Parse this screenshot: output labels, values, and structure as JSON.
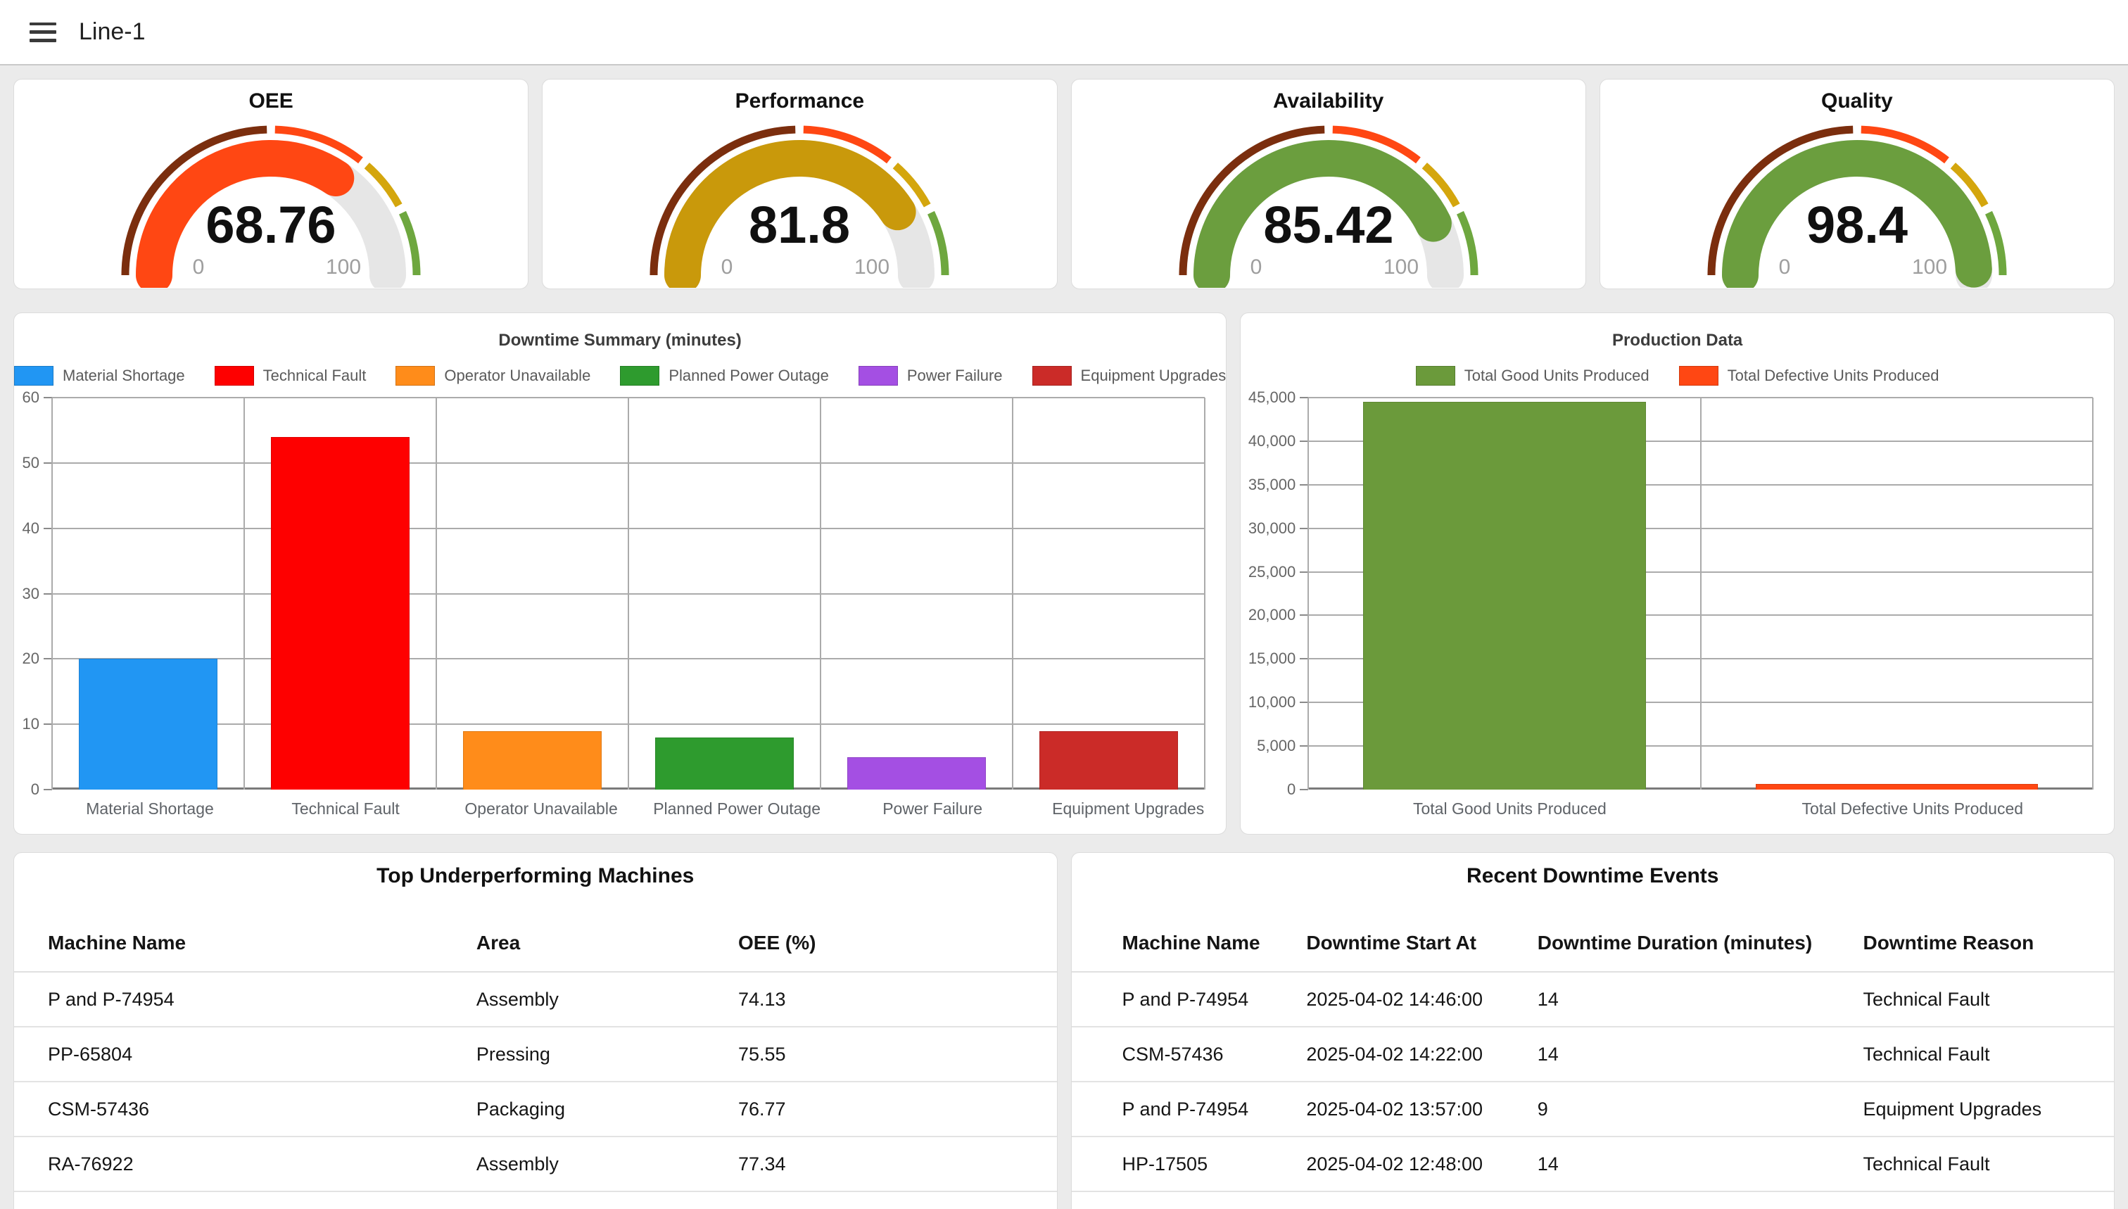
{
  "page_background": "#EBEBEB",
  "header": {
    "title": "Line-1"
  },
  "gauge_style": {
    "ring_segments": [
      {
        "from": 0,
        "to": 50,
        "color": "#7B2E0E"
      },
      {
        "from": 50,
        "to": 72,
        "color": "#FF4713"
      },
      {
        "from": 72,
        "to": 85,
        "color": "#D4A60D"
      },
      {
        "from": 85,
        "to": 100,
        "color": "#6EA73F"
      }
    ],
    "track_color": "#E6E6E6",
    "min_label": "0",
    "max_label": "100"
  },
  "chart_data": [
    {
      "type": "gauge",
      "title": "OEE",
      "value": 68.76,
      "min": 0,
      "max": 100,
      "fill_color": "#FF4713"
    },
    {
      "type": "gauge",
      "title": "Performance",
      "value": 81.8,
      "min": 0,
      "max": 100,
      "fill_color": "#C9990B"
    },
    {
      "type": "gauge",
      "title": "Availability",
      "value": 85.42,
      "min": 0,
      "max": 100,
      "fill_color": "#6B9E3E"
    },
    {
      "type": "gauge",
      "title": "Quality",
      "value": 98.4,
      "min": 0,
      "max": 100,
      "fill_color": "#6B9E3E"
    },
    {
      "type": "bar",
      "title": "Downtime Summary (minutes)",
      "categories": [
        "Material Shortage",
        "Technical Fault",
        "Operator Unavailable",
        "Planned Power Outage",
        "Power Failure",
        "Equipment Upgrades"
      ],
      "values": [
        20,
        54,
        9,
        8,
        5,
        9
      ],
      "colors": [
        "#2196F3",
        "#FE0000",
        "#FF8C1A",
        "#2E9B2E",
        "#A44FE3",
        "#CB2B28"
      ],
      "ylim": [
        0,
        60
      ],
      "ytick_step": 10,
      "grid": true,
      "legend_position": "top",
      "xlabel": "",
      "ylabel": ""
    },
    {
      "type": "bar",
      "title": "Production Data",
      "categories": [
        "Total Good Units Produced",
        "Total Defective Units Produced"
      ],
      "values": [
        44500,
        650
      ],
      "colors": [
        "#6B9A3B",
        "#FF4713"
      ],
      "ylim": [
        0,
        45000
      ],
      "ytick_step": 5000,
      "grid": true,
      "legend_position": "top",
      "xlabel": "",
      "ylabel": ""
    }
  ],
  "tables": {
    "underperforming": {
      "title": "Top Underperforming Machines",
      "columns": [
        "Machine Name",
        "Area",
        "OEE (%)"
      ],
      "rows": [
        [
          "P and P-74954",
          "Assembly",
          "74.13"
        ],
        [
          "PP-65804",
          "Pressing",
          "75.55"
        ],
        [
          "CSM-57436",
          "Packaging",
          "76.77"
        ],
        [
          "RA-76922",
          "Assembly",
          "77.34"
        ]
      ]
    },
    "downtime_events": {
      "title": "Recent Downtime Events",
      "columns": [
        "Machine Name",
        "Downtime Start At",
        "Downtime Duration (minutes)",
        "Downtime Reason"
      ],
      "rows": [
        [
          "P and P-74954",
          "2025-04-02 14:46:00",
          "14",
          "Technical Fault"
        ],
        [
          "CSM-57436",
          "2025-04-02 14:22:00",
          "14",
          "Technical Fault"
        ],
        [
          "P and P-74954",
          "2025-04-02 13:57:00",
          "9",
          "Equipment Upgrades"
        ],
        [
          "HP-17505",
          "2025-04-02 12:48:00",
          "14",
          "Technical Fault"
        ]
      ]
    }
  }
}
